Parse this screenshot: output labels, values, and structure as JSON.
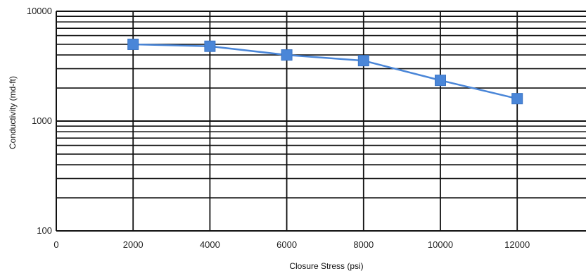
{
  "chart_data": {
    "type": "line",
    "title": "",
    "xlabel": "Closure Stress (psi)",
    "ylabel": "Conductivity (md-ft)",
    "xlim": [
      0,
      14000
    ],
    "ylim": [
      100,
      10000
    ],
    "yscale": "log",
    "grid": true,
    "x_ticks": [
      "0",
      "2000",
      "4000",
      "6000",
      "8000",
      "10000",
      "12000"
    ],
    "y_ticks": [
      "100",
      "1000",
      "10000"
    ],
    "series": [
      {
        "x": [
          2000,
          4000,
          6000,
          8000,
          10000,
          12000
        ],
        "y": [
          5000,
          4800,
          4000,
          3550,
          2350,
          1600
        ]
      }
    ],
    "colors": {
      "line": "#4a86d8",
      "marker": "#4a86d8",
      "grid": "#111111"
    }
  }
}
